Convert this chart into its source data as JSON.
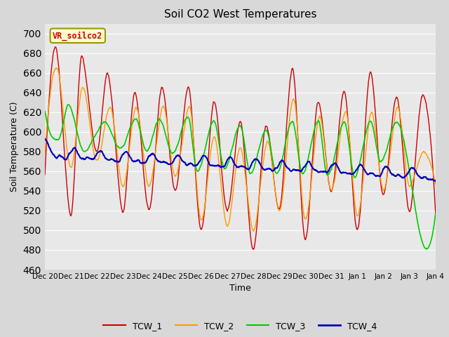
{
  "title": "Soil CO2 West Temperatures",
  "ylabel": "Soil Temperature (C)",
  "xlabel": "Time",
  "annotation": "VR_soilco2",
  "ylim": [
    460,
    710
  ],
  "yticks": [
    460,
    480,
    500,
    520,
    540,
    560,
    580,
    600,
    620,
    640,
    660,
    680,
    700
  ],
  "plot_bg": "#e8e8e8",
  "fig_bg": "#d8d8d8",
  "line_colors": {
    "TCW_1": "#cc0000",
    "TCW_2": "#ff9900",
    "TCW_3": "#00cc00",
    "TCW_4": "#0000bb"
  },
  "annotation_box_color": "#ffffcc",
  "annotation_text_color": "#cc0000",
  "annotation_border_color": "#999900",
  "grid_color": "#ffffff",
  "tick_fontsize": 7.5,
  "title_fontsize": 11,
  "label_fontsize": 9
}
